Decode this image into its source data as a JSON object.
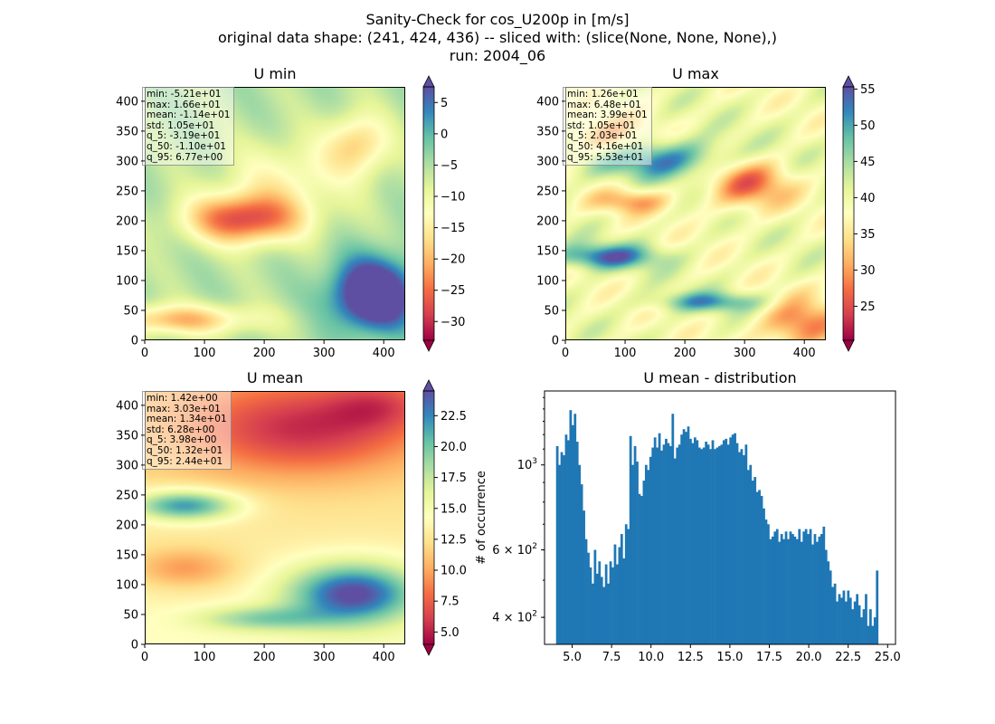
{
  "figure": {
    "title_lines": [
      "Sanity-Check for cos_U200p in [m/s]",
      "original data shape: (241, 424, 436) -- sliced with: (slice(None, None, None),)",
      "run: 2004_06"
    ]
  },
  "colors": {
    "histogram_bar": "#1f77b4",
    "colormap": "Spectral",
    "colormap_stops": [
      "#9e0142",
      "#d53e4f",
      "#f46d43",
      "#fdae61",
      "#fee08b",
      "#ffffbf",
      "#e6f598",
      "#abdda4",
      "#66c2a5",
      "#3288bd",
      "#5e4fa2"
    ]
  },
  "chart_data": [
    {
      "type": "heatmap",
      "name": "u-min",
      "title": "U min",
      "xlim": [
        0,
        436
      ],
      "ylim": [
        0,
        424
      ],
      "xticks": [
        0,
        100,
        200,
        300,
        400
      ],
      "yticks": [
        0,
        50,
        100,
        150,
        200,
        250,
        300,
        350,
        400
      ],
      "colorbar": {
        "range": [
          -33,
          7.5
        ],
        "ticks": [
          5,
          0,
          -5,
          -10,
          -15,
          -20,
          -25,
          -30
        ],
        "tick_labels": [
          "5",
          "0",
          "−5",
          "−10",
          "−15",
          "−20",
          "−25",
          "−30"
        ],
        "extend": "both"
      },
      "stats": [
        "min: -5.21e+01",
        "max: 1.66e+01",
        "mean: -1.14e+01",
        "std: 1.05e+01",
        "q_5: -3.19e+01",
        "q_50: -1.10e+01",
        "q_95: 6.77e+00"
      ]
    },
    {
      "type": "heatmap",
      "name": "u-max",
      "title": "U max",
      "xlim": [
        0,
        436
      ],
      "ylim": [
        0,
        424
      ],
      "xticks": [
        0,
        100,
        200,
        300,
        400
      ],
      "yticks": [
        0,
        50,
        100,
        150,
        200,
        250,
        300,
        350,
        400
      ],
      "colorbar": {
        "range": [
          20.3,
          55.3
        ],
        "ticks": [
          55,
          50,
          45,
          40,
          35,
          30,
          25
        ],
        "tick_labels": [
          "55",
          "50",
          "45",
          "40",
          "35",
          "30",
          "25"
        ],
        "extend": "both"
      },
      "stats": [
        "min: 1.26e+01",
        "max: 6.48e+01",
        "mean: 3.99e+01",
        "std: 1.05e+01",
        "q_5: 2.03e+01",
        "q_50: 4.16e+01",
        "q_95: 5.53e+01"
      ]
    },
    {
      "type": "heatmap",
      "name": "u-mean",
      "title": "U mean",
      "xlim": [
        0,
        436
      ],
      "ylim": [
        0,
        424
      ],
      "xticks": [
        0,
        100,
        200,
        300,
        400
      ],
      "yticks": [
        0,
        50,
        100,
        150,
        200,
        250,
        300,
        350,
        400
      ],
      "colorbar": {
        "range": [
          4.0,
          24.5
        ],
        "ticks": [
          22.5,
          20.0,
          17.5,
          15.0,
          12.5,
          10.0,
          7.5,
          5.0
        ],
        "tick_labels": [
          "22.5",
          "20.0",
          "17.5",
          "15.0",
          "12.5",
          "10.0",
          "7.5",
          "5.0"
        ],
        "extend": "both"
      },
      "stats": [
        "min: 1.42e+00",
        "max: 3.03e+01",
        "mean: 1.34e+01",
        "std: 6.28e+00",
        "q_5: 3.98e+00",
        "q_50: 1.32e+01",
        "q_95: 2.44e+01"
      ]
    },
    {
      "type": "bar",
      "name": "u-mean-distribution",
      "title": "U mean - distribution",
      "ylabel": "# of occurrence",
      "xlim": [
        3.25,
        25.5
      ],
      "yscale": "log",
      "ylim": [
        340,
        1560
      ],
      "xticks": [
        5.0,
        7.5,
        10.0,
        12.5,
        15.0,
        17.5,
        20.0,
        22.5,
        25.0
      ],
      "xtick_labels": [
        "5.0",
        "7.5",
        "10.0",
        "12.5",
        "15.0",
        "17.5",
        "20.0",
        "22.5",
        "25.0"
      ],
      "yticks_major": [
        1000
      ],
      "yticks_minor": [
        400,
        600
      ],
      "ytick_labels": [
        {
          "value": 1000,
          "base": "10",
          "exp": "3"
        },
        {
          "value": 600,
          "base": "6 × 10",
          "exp": "2"
        },
        {
          "value": 400,
          "base": "4 × 10",
          "exp": "2"
        }
      ],
      "bin_start": 3.98,
      "bin_end": 24.4,
      "values": [
        1120,
        1000,
        1080,
        1060,
        1200,
        1160,
        1390,
        1270,
        1360,
        1150,
        1000,
        890,
        760,
        640,
        590,
        540,
        490,
        600,
        520,
        560,
        510,
        480,
        550,
        490,
        560,
        540,
        620,
        550,
        610,
        660,
        570,
        700,
        680,
        1190,
        1000,
        1120,
        1020,
        840,
        830,
        910,
        1000,
        970,
        1050,
        1110,
        1180,
        1110,
        1210,
        1090,
        1130,
        1170,
        1140,
        1120,
        1360,
        1040,
        1110,
        1130,
        1200,
        1240,
        1220,
        1260,
        1170,
        1140,
        1180,
        1160,
        1110,
        1100,
        1110,
        1150,
        1130,
        1100,
        1160,
        1100,
        1110,
        1120,
        1130,
        1160,
        1170,
        1130,
        1180,
        1200,
        1210,
        1140,
        1080,
        1100,
        1060,
        1130,
        970,
        1000,
        910,
        930,
        850,
        860,
        830,
        770,
        720,
        700,
        640,
        650,
        670,
        680,
        630,
        660,
        640,
        670,
        640,
        670,
        660,
        650,
        640,
        680,
        630,
        670,
        680,
        660,
        680,
        620,
        660,
        630,
        650,
        660,
        690,
        600,
        560,
        530,
        480,
        490,
        440,
        460,
        450,
        470,
        440,
        470,
        450,
        420,
        440,
        460,
        430,
        400,
        420,
        460,
        380,
        420,
        380,
        400,
        530
      ]
    }
  ]
}
